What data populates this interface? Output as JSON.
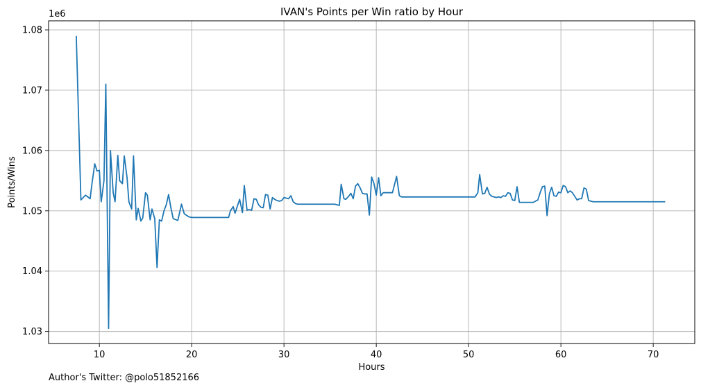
{
  "chart_data": {
    "type": "line",
    "title": "IVAN's Points per Win ratio by Hour",
    "xlabel": "Hours",
    "ylabel": "Points/Wins",
    "y_offset_label": "1e6",
    "xlim": [
      4.5,
      74.5
    ],
    "ylim": [
      1.028,
      1.0815
    ],
    "x_ticks": [
      10,
      20,
      30,
      40,
      50,
      60,
      70
    ],
    "x_tick_labels": [
      "10",
      "20",
      "30",
      "40",
      "50",
      "60",
      "70"
    ],
    "y_ticks": [
      1.03,
      1.04,
      1.05,
      1.06,
      1.07,
      1.08
    ],
    "y_tick_labels": [
      "1.03",
      "1.04",
      "1.05",
      "1.06",
      "1.07",
      "1.08"
    ],
    "grid": true,
    "line_color": "#1f77b4",
    "series": [
      {
        "x": [
          7.5,
          8.0,
          8.5,
          9.0,
          9.2,
          9.5,
          9.75,
          10.0,
          10.2,
          10.5,
          10.7,
          11.0,
          11.2,
          11.5,
          11.7,
          12.0,
          12.2,
          12.5,
          12.7,
          13.0,
          13.2,
          13.5,
          13.7,
          14.0,
          14.2,
          14.5,
          14.7,
          15.0,
          15.2,
          15.5,
          15.7,
          16.0,
          16.25,
          16.5,
          16.75,
          17.0,
          17.25,
          17.5,
          17.75,
          18.0,
          18.5,
          18.9,
          19.2,
          19.7,
          20.0,
          21.0,
          22.0,
          23.0,
          24.0,
          24.2,
          24.5,
          24.7,
          25.0,
          25.2,
          25.5,
          25.7,
          26.0,
          26.2,
          26.5,
          26.75,
          27.0,
          27.25,
          27.5,
          27.75,
          28.0,
          28.25,
          28.5,
          28.75,
          29.0,
          29.25,
          29.5,
          29.75,
          30.0,
          30.25,
          30.5,
          30.75,
          31.0,
          31.25,
          31.5,
          31.75,
          32.0,
          33.0,
          34.0,
          35.0,
          35.5,
          36.0,
          36.2,
          36.5,
          36.7,
          37.0,
          37.25,
          37.5,
          37.75,
          38.0,
          38.25,
          38.5,
          38.75,
          39.0,
          39.25,
          39.5,
          39.75,
          40.0,
          40.25,
          40.5,
          40.75,
          41.0,
          41.25,
          41.5,
          41.75,
          42.0,
          42.2,
          42.5,
          42.75,
          43.0,
          44.0,
          45.0,
          46.0,
          47.0,
          48.0,
          49.0,
          50.0,
          50.7,
          51.0,
          51.2,
          51.5,
          51.75,
          52.0,
          52.25,
          52.5,
          52.75,
          53.0,
          53.25,
          53.5,
          53.75,
          54.0,
          54.25,
          54.5,
          54.75,
          55.0,
          55.25,
          55.5,
          55.75,
          56.0,
          56.5,
          57.0,
          57.25,
          57.5,
          57.75,
          58.0,
          58.25,
          58.5,
          58.75,
          59.0,
          59.25,
          59.5,
          59.75,
          60.0,
          60.25,
          60.5,
          60.75,
          61.0,
          61.25,
          61.5,
          61.75,
          62.0,
          62.25,
          62.5,
          62.75,
          63.0,
          63.25,
          63.5,
          64.0,
          65.0,
          66.0,
          67.0,
          68.0,
          69.0,
          70.0,
          71.3
        ],
        "y": [
          1.079,
          1.0518,
          1.0526,
          1.052,
          1.0545,
          1.0578,
          1.0566,
          1.0567,
          1.0515,
          1.055,
          1.071,
          1.0305,
          1.06,
          1.053,
          1.0515,
          1.0592,
          1.055,
          1.0545,
          1.0591,
          1.0555,
          1.0515,
          1.0503,
          1.0591,
          1.0485,
          1.0504,
          1.0483,
          1.0488,
          1.053,
          1.0526,
          1.0485,
          1.0503,
          1.0487,
          1.0406,
          1.0485,
          1.0483,
          1.05,
          1.051,
          1.0527,
          1.0505,
          1.0487,
          1.0484,
          1.0511,
          1.0495,
          1.049,
          1.0489,
          1.0489,
          1.0489,
          1.0489,
          1.0489,
          1.05,
          1.0507,
          1.0496,
          1.051,
          1.0519,
          1.0497,
          1.0542,
          1.0501,
          1.0502,
          1.0501,
          1.052,
          1.0519,
          1.051,
          1.0506,
          1.0505,
          1.0527,
          1.0526,
          1.0503,
          1.0522,
          1.0519,
          1.0517,
          1.0516,
          1.0517,
          1.0522,
          1.0521,
          1.052,
          1.0525,
          1.0515,
          1.0512,
          1.0511,
          1.0511,
          1.0511,
          1.0511,
          1.0511,
          1.0511,
          1.0511,
          1.0509,
          1.0544,
          1.052,
          1.0519,
          1.0524,
          1.0529,
          1.052,
          1.0541,
          1.0545,
          1.0538,
          1.0529,
          1.0528,
          1.0528,
          1.0493,
          1.0556,
          1.0545,
          1.0526,
          1.0555,
          1.0525,
          1.053,
          1.053,
          1.053,
          1.053,
          1.053,
          1.0545,
          1.0557,
          1.0525,
          1.0523,
          1.0523,
          1.0523,
          1.0523,
          1.0523,
          1.0523,
          1.0523,
          1.0523,
          1.0523,
          1.0523,
          1.053,
          1.056,
          1.0528,
          1.0529,
          1.0539,
          1.0528,
          1.0524,
          1.0523,
          1.0522,
          1.0523,
          1.0522,
          1.0525,
          1.0524,
          1.053,
          1.0529,
          1.0518,
          1.0517,
          1.054,
          1.0514,
          1.0514,
          1.0514,
          1.0514,
          1.0514,
          1.0516,
          1.0518,
          1.053,
          1.054,
          1.0541,
          1.0492,
          1.0528,
          1.0539,
          1.0525,
          1.0524,
          1.0531,
          1.053,
          1.0542,
          1.054,
          1.053,
          1.0533,
          1.053,
          1.0524,
          1.0518,
          1.052,
          1.052,
          1.0538,
          1.0536,
          1.0517,
          1.0516,
          1.0515,
          1.0515,
          1.0515,
          1.0515,
          1.0515,
          1.0515,
          1.0515,
          1.0515,
          1.0515
        ]
      }
    ]
  },
  "footnote": "Author's Twitter: @polo51852166"
}
